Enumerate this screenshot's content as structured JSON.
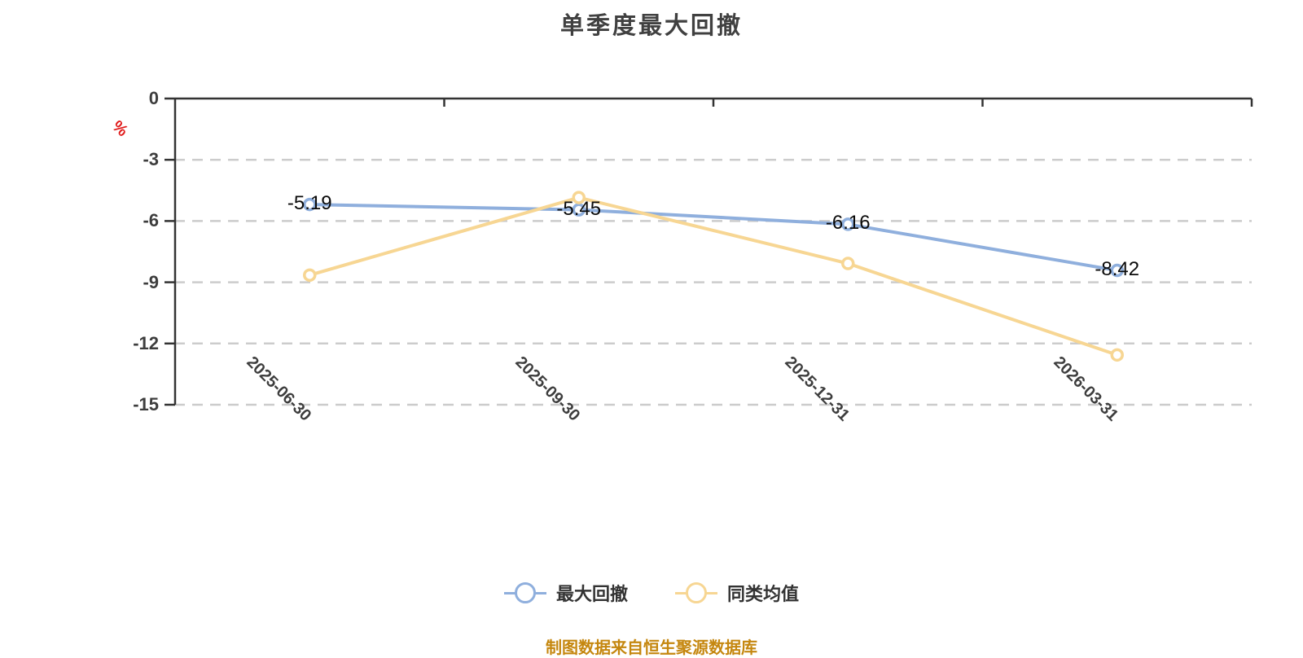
{
  "title": "单季度最大回撤",
  "caption": "制图数据来自恒生聚源数据库",
  "y_axis": {
    "unit": "%",
    "min": -15,
    "max": 0
  },
  "legend": {
    "items": [
      "最大回撤",
      "同类均值"
    ]
  },
  "colors": {
    "series_max_drawdown": "#8FAFDD",
    "series_peer_average": "#F7D693",
    "caption": "#C5870F",
    "unit_label": "#E01A1A",
    "axis": "#333333",
    "gridline": "#CCCCCC",
    "tick_label": "#3D3D3D",
    "data_label": "#0A0A0A",
    "marker_fill": "#FFFFFF"
  },
  "chart_data": {
    "type": "line",
    "title": "单季度最大回撤",
    "categories": [
      "2025-06-30",
      "2025-09-30",
      "2025-12-31",
      "2026-03-31"
    ],
    "series": [
      {
        "name": "最大回撤",
        "color": "#8FAFDD",
        "values": [
          -5.19,
          -5.45,
          -6.16,
          -8.42
        ],
        "labels": [
          "-5.19",
          "-5.45",
          "-6.16",
          "-8.42"
        ],
        "show_labels": true
      },
      {
        "name": "同类均值",
        "color": "#F7D693",
        "values": [
          -8.65,
          -4.85,
          -8.08,
          -12.56
        ],
        "labels": [],
        "show_labels": false
      }
    ],
    "xlabel": "",
    "ylabel": "%",
    "ylim": [
      -15,
      0
    ],
    "yticks": [
      0,
      -3,
      -6,
      -9,
      -12,
      -15
    ],
    "grid": "horizontal-dashed",
    "legend_position": "bottom-center"
  }
}
